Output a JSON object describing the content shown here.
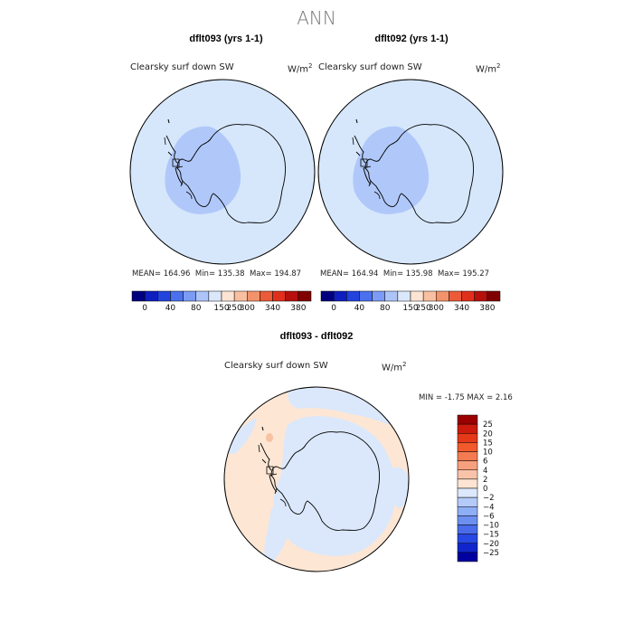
{
  "title": "ANN",
  "panels": [
    {
      "title": "dflt093 (yrs 1-1)",
      "variable": "Clearsky surf down SW",
      "units": "W/m",
      "units_exp": "2",
      "stats": {
        "mean_label": "MEAN=",
        "mean": "164.96",
        "min_label": "Min=",
        "min": "135.38",
        "max_label": "Max=",
        "max": "194.87"
      }
    },
    {
      "title": "dflt092 (yrs 1-1)",
      "variable": "Clearsky surf down SW",
      "units": "W/m",
      "units_exp": "2",
      "stats": {
        "mean_label": "MEAN=",
        "mean": "164.94",
        "min_label": "Min=",
        "min": "135.98",
        "max_label": "Max=",
        "max": "195.27"
      }
    }
  ],
  "colorbar_main": {
    "colors": [
      "#00007f",
      "#0f1fbf",
      "#2244dd",
      "#4a70ee",
      "#7b9bf5",
      "#adc4f8",
      "#dbe7fb",
      "#fde4d2",
      "#f8bfa0",
      "#f3936b",
      "#ec5b38",
      "#e0301c",
      "#b5100c",
      "#800000"
    ],
    "ticks": [
      "0",
      "40",
      "80",
      "150",
      "250",
      "300",
      "340",
      "380"
    ]
  },
  "diff_panel": {
    "title": "dflt093 - dflt092",
    "variable": "Clearsky surf down SW",
    "units": "W/m",
    "units_exp": "2",
    "minmax": "MIN =   -1.75 MAX =    2.16"
  },
  "colorbar_diff": {
    "colors_top_to_bottom": [
      "#9b0000",
      "#cc1b0c",
      "#e5391a",
      "#f25a2b",
      "#f47b51",
      "#f6a07e",
      "#f9c3aa",
      "#fde4d3",
      "#dce8fb",
      "#b4cbf9",
      "#8eaef5",
      "#6d90f0",
      "#4a6cea",
      "#2848e3",
      "#1026cc",
      "#0000a0"
    ],
    "labels_top_to_bottom": [
      "25",
      "20",
      "15",
      "10",
      "6",
      "4",
      "2",
      "0",
      "−2",
      "−4",
      "−6",
      "−10",
      "−15",
      "−20",
      "−25"
    ]
  },
  "map_colors": {
    "ocean_main": "#d6e7fc",
    "land_band_main": "#b0c8f9",
    "ocean_diff": "#fde6d4",
    "land_diff": "#dbe8fb",
    "anomaly_red": "#f8c1a2"
  }
}
